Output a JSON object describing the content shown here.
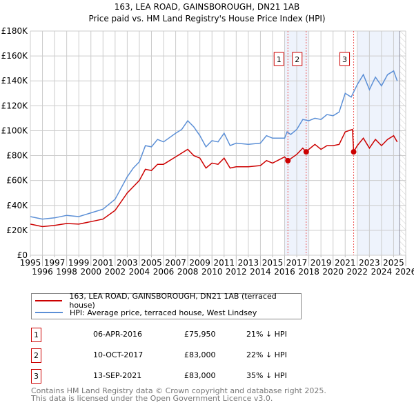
{
  "chart_data": {
    "type": "line",
    "title": "163, LEA ROAD, GAINSBOROUGH, DN21 1AB",
    "subtitle": "Price paid vs. HM Land Registry's House Price Index (HPI)",
    "xlim": [
      1995,
      2026
    ],
    "ylim": [
      0,
      180000
    ],
    "x_ticks": [
      "1995",
      "1996",
      "1997",
      "1998",
      "1999",
      "2000",
      "2001",
      "2002",
      "2003",
      "2004",
      "2005",
      "2006",
      "2007",
      "2008",
      "2009",
      "2010",
      "2011",
      "2012",
      "2013",
      "2014",
      "2015",
      "2016",
      "2017",
      "2018",
      "2019",
      "2020",
      "2021",
      "2022",
      "2023",
      "2024",
      "2025",
      "2026"
    ],
    "y_ticks": [
      {
        "v": 0,
        "label": "£0"
      },
      {
        "v": 20000,
        "label": "£20K"
      },
      {
        "v": 40000,
        "label": "£40K"
      },
      {
        "v": 60000,
        "label": "£60K"
      },
      {
        "v": 80000,
        "label": "£80K"
      },
      {
        "v": 100000,
        "label": "£100K"
      },
      {
        "v": 120000,
        "label": "£120K"
      },
      {
        "v": 140000,
        "label": "£140K"
      },
      {
        "v": 160000,
        "label": "£160K"
      },
      {
        "v": 180000,
        "label": "£180K"
      }
    ],
    "grid": true,
    "series": [
      {
        "name": "163, LEA ROAD, GAINSBOROUGH, DN21 1AB (terraced house)",
        "color": "#cc0000",
        "x": [
          1995,
          1996,
          1997,
          1998,
          1999,
          2000,
          2001,
          2002,
          2003,
          2004,
          2004.5,
          2005,
          2005.5,
          2006,
          2007,
          2008,
          2008.5,
          2009,
          2009.5,
          2010,
          2010.5,
          2011,
          2011.5,
          2012,
          2013,
          2014,
          2014.5,
          2015,
          2016,
          2016.27,
          2017,
          2017.5,
          2017.78,
          2018,
          2018.5,
          2019,
          2019.5,
          2020,
          2020.5,
          2021,
          2021.6,
          2021.7,
          2022,
          2022.5,
          2023,
          2023.5,
          2024,
          2024.5,
          2025,
          2025.3
        ],
        "y": [
          25000,
          23000,
          24000,
          25500,
          25000,
          27000,
          29000,
          36000,
          50000,
          60000,
          69000,
          68000,
          73000,
          73000,
          79000,
          85000,
          80000,
          78000,
          70000,
          74000,
          73000,
          78000,
          70000,
          71000,
          71000,
          72000,
          76000,
          74000,
          79000,
          75950,
          81000,
          86000,
          83000,
          85000,
          89000,
          85000,
          88000,
          88000,
          89000,
          99000,
          101000,
          83000,
          88000,
          94000,
          86000,
          93000,
          88000,
          93000,
          96000,
          91000
        ]
      },
      {
        "name": "HPI: Average price, terraced house, West Lindsey",
        "color": "#5b8fd6",
        "x": [
          1995,
          1996,
          1997,
          1998,
          1999,
          2000,
          2001,
          2002,
          2003,
          2003.5,
          2004,
          2004.5,
          2005,
          2005.5,
          2006,
          2007,
          2007.5,
          2008,
          2008.5,
          2009,
          2009.5,
          2010,
          2010.5,
          2011,
          2011.5,
          2012,
          2013,
          2014,
          2014.5,
          2015,
          2016,
          2016.2,
          2016.5,
          2017,
          2017.5,
          2018,
          2018.5,
          2019,
          2019.5,
          2020,
          2020.5,
          2021,
          2021.5,
          2022,
          2022.5,
          2023,
          2023.5,
          2024,
          2024.5,
          2025,
          2025.3
        ],
        "y": [
          31000,
          29000,
          30000,
          32000,
          31000,
          34000,
          37000,
          45000,
          63000,
          70000,
          75000,
          88000,
          87000,
          93000,
          91000,
          98000,
          101000,
          108000,
          103000,
          96000,
          87000,
          92000,
          91000,
          98000,
          88000,
          90000,
          89000,
          90000,
          96000,
          94000,
          94000,
          99000,
          97000,
          101000,
          109000,
          108000,
          110000,
          109000,
          113000,
          112000,
          115000,
          130000,
          127000,
          137000,
          145000,
          133000,
          143000,
          136000,
          145000,
          148000,
          140000
        ]
      }
    ],
    "sales": [
      {
        "n": "1",
        "x": 2016.27,
        "y": 75950
      },
      {
        "n": "2",
        "x": 2017.78,
        "y": 83000
      },
      {
        "n": "3",
        "x": 2021.7,
        "y": 83000
      }
    ],
    "legend_position": "bottom"
  },
  "table": [
    {
      "n": "1",
      "date": "06-APR-2016",
      "price": "£75,950",
      "delta": "21% ↓ HPI"
    },
    {
      "n": "2",
      "date": "10-OCT-2017",
      "price": "£83,000",
      "delta": "22% ↓ HPI"
    },
    {
      "n": "3",
      "date": "13-SEP-2021",
      "price": "£83,000",
      "delta": "35% ↓ HPI"
    }
  ],
  "footer": {
    "line1": "Contains HM Land Registry data © Crown copyright and database right 2025.",
    "line2": "This data is licensed under the Open Government Licence v3.0."
  }
}
